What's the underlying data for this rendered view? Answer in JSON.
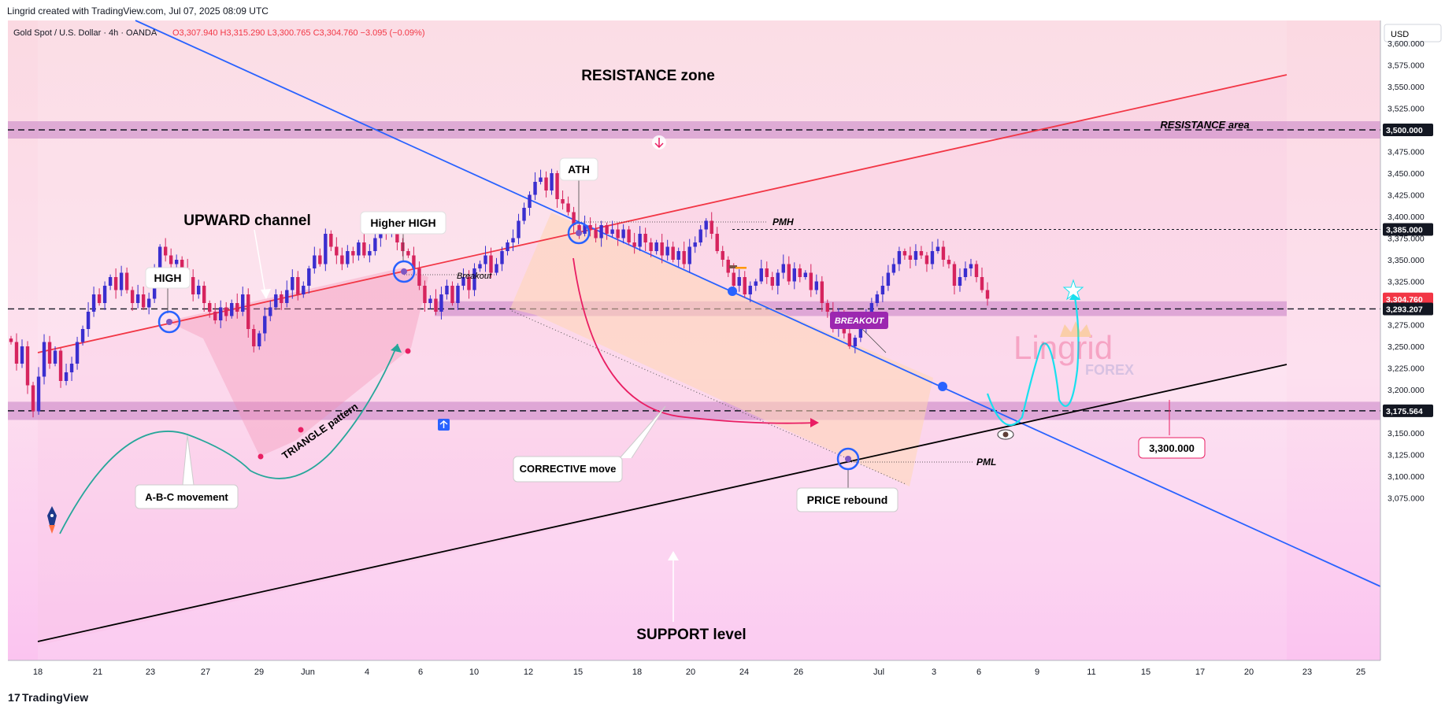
{
  "header": {
    "attribution": "Lingrid created with TradingView.com, Jul 07, 2025 08:09 UTC",
    "symbol": "Gold Spot / U.S. Dollar · 4h · OANDA",
    "ohlc": "O3,307.940  H3,315.290  L3,300.765  C3,304.760  −3.095 (−0.09%)"
  },
  "footer": {
    "brand": "TradingView",
    "brand_mark": "17"
  },
  "axis": {
    "currency": "USD",
    "price_ticks": [
      "3,600.000",
      "3,575.000",
      "3,550.000",
      "3,525.000",
      "3,500.000",
      "3,475.000",
      "3,450.000",
      "3,425.000",
      "3,400.000",
      "3,375.000",
      "3,350.000",
      "3,325.000",
      "3,300.000",
      "3,275.000",
      "3,250.000",
      "3,225.000",
      "3,200.000",
      "3,175.000",
      "3,150.000",
      "3,125.000",
      "3,100.000",
      "3,075.000"
    ],
    "date_ticks": [
      "18",
      "21",
      "23",
      "27",
      "29",
      "Jun",
      "4",
      "6",
      "10",
      "12",
      "15",
      "18",
      "20",
      "24",
      "26",
      "Jul",
      "3",
      "6",
      "9",
      "11",
      "15",
      "17",
      "20",
      "23",
      "25"
    ]
  },
  "price_labels": [
    {
      "text": "3,500.000",
      "color": "#131722",
      "text_color": "#ffffff"
    },
    {
      "text": "3,385.000",
      "color": "#131722",
      "text_color": "#ffffff"
    },
    {
      "text": "3,304.760",
      "color": "#f23645",
      "text_color": "#ffffff"
    },
    {
      "text": "3,293.207",
      "color": "#131722",
      "text_color": "#ffffff"
    },
    {
      "text": "3,175.564",
      "color": "#131722",
      "text_color": "#ffffff"
    }
  ],
  "annotations": {
    "resistance_zone": "RESISTANCE zone",
    "resistance_area": "RESISTANCE area",
    "upward_channel": "UPWARD channel",
    "high": "HIGH",
    "higher_high": "Higher HIGH",
    "ath": "ATH",
    "pmh": "PMH",
    "pml": "PML",
    "breakout_small": "Breakout",
    "breakout_badge": "BREAKOUT",
    "triangle": "TRIANGLE pattern",
    "abc": "A-B-C movement",
    "corrective": "CORRECTIVE move",
    "price_rebound": "PRICE rebound",
    "support_level": "SUPPORT level",
    "target_label": "3,300.000",
    "watermark_main": "Lingrid",
    "watermark_sub": "FOREX"
  },
  "colors": {
    "bull": "#3a2ecf",
    "bear": "#d6245e",
    "resistance_line": "#f23645",
    "trend_line": "#2962ff",
    "support_line": "#000000",
    "zone": "#c77fc4",
    "breakout_badge": "#9c27b0"
  },
  "chart_data": {
    "type": "candlestick",
    "symbol": "XAUUSD",
    "timeframe": "4h",
    "x_label": "",
    "y_label": "USD",
    "ylim": [
      3075,
      3615
    ],
    "horizontal_levels": [
      3500.0,
      3385.0,
      3304.76,
      3293.207,
      3175.564
    ],
    "zones": [
      {
        "from": 3490,
        "to": 3510
      },
      {
        "from": 3285,
        "to": 3302
      },
      {
        "from": 3165,
        "to": 3186
      }
    ],
    "key_points": [
      {
        "label": "HIGH",
        "date": "May 23",
        "price": 3365
      },
      {
        "label": "Higher HIGH",
        "date": "Jun 5",
        "price": 3403
      },
      {
        "label": "ATH",
        "date": "Jun 15",
        "price": 3452
      },
      {
        "label": "PRICE rebound",
        "date": "Jun 29",
        "price": 3248
      },
      {
        "label": "PMH",
        "price": 3452
      },
      {
        "label": "PML",
        "price": 3248
      }
    ],
    "close_path": [
      3255,
      3230,
      3250,
      3205,
      3175,
      3215,
      3255,
      3230,
      3245,
      3210,
      3220,
      3230,
      3255,
      3270,
      3290,
      3310,
      3300,
      3320,
      3330,
      3315,
      3335,
      3315,
      3300,
      3310,
      3295,
      3305,
      3340,
      3365,
      3355,
      3345,
      3350,
      3340,
      3330,
      3310,
      3320,
      3300,
      3290,
      3280,
      3295,
      3285,
      3300,
      3290,
      3310,
      3270,
      3250,
      3265,
      3285,
      3295,
      3310,
      3300,
      3315,
      3330,
      3310,
      3320,
      3340,
      3355,
      3345,
      3380,
      3365,
      3355,
      3345,
      3360,
      3355,
      3370,
      3355,
      3360,
      3375,
      3390,
      3380,
      3395,
      3370,
      3360,
      3355,
      3340,
      3320,
      3300,
      3305,
      3290,
      3310,
      3320,
      3300,
      3320,
      3330,
      3315,
      3340,
      3345,
      3355,
      3335,
      3345,
      3360,
      3370,
      3375,
      3395,
      3410,
      3425,
      3440,
      3445,
      3430,
      3450,
      3420,
      3415,
      3405,
      3390,
      3380,
      3390,
      3385,
      3375,
      3390,
      3380,
      3385,
      3375,
      3385,
      3370,
      3365,
      3380,
      3370,
      3360,
      3370,
      3355,
      3365,
      3350,
      3360,
      3345,
      3365,
      3370,
      3385,
      3395,
      3380,
      3360,
      3350,
      3335,
      3320,
      3330,
      3310,
      3320,
      3325,
      3340,
      3330,
      3320,
      3335,
      3345,
      3325,
      3340,
      3330,
      3335,
      3315,
      3325,
      3300,
      3290,
      3270,
      3285,
      3265,
      3250,
      3260,
      3275,
      3285,
      3300,
      3310,
      3320,
      3335,
      3345,
      3360,
      3355,
      3350,
      3360,
      3355,
      3345,
      3360,
      3365,
      3350,
      3345,
      3320,
      3330,
      3340,
      3345,
      3330,
      3315,
      3305
    ]
  }
}
